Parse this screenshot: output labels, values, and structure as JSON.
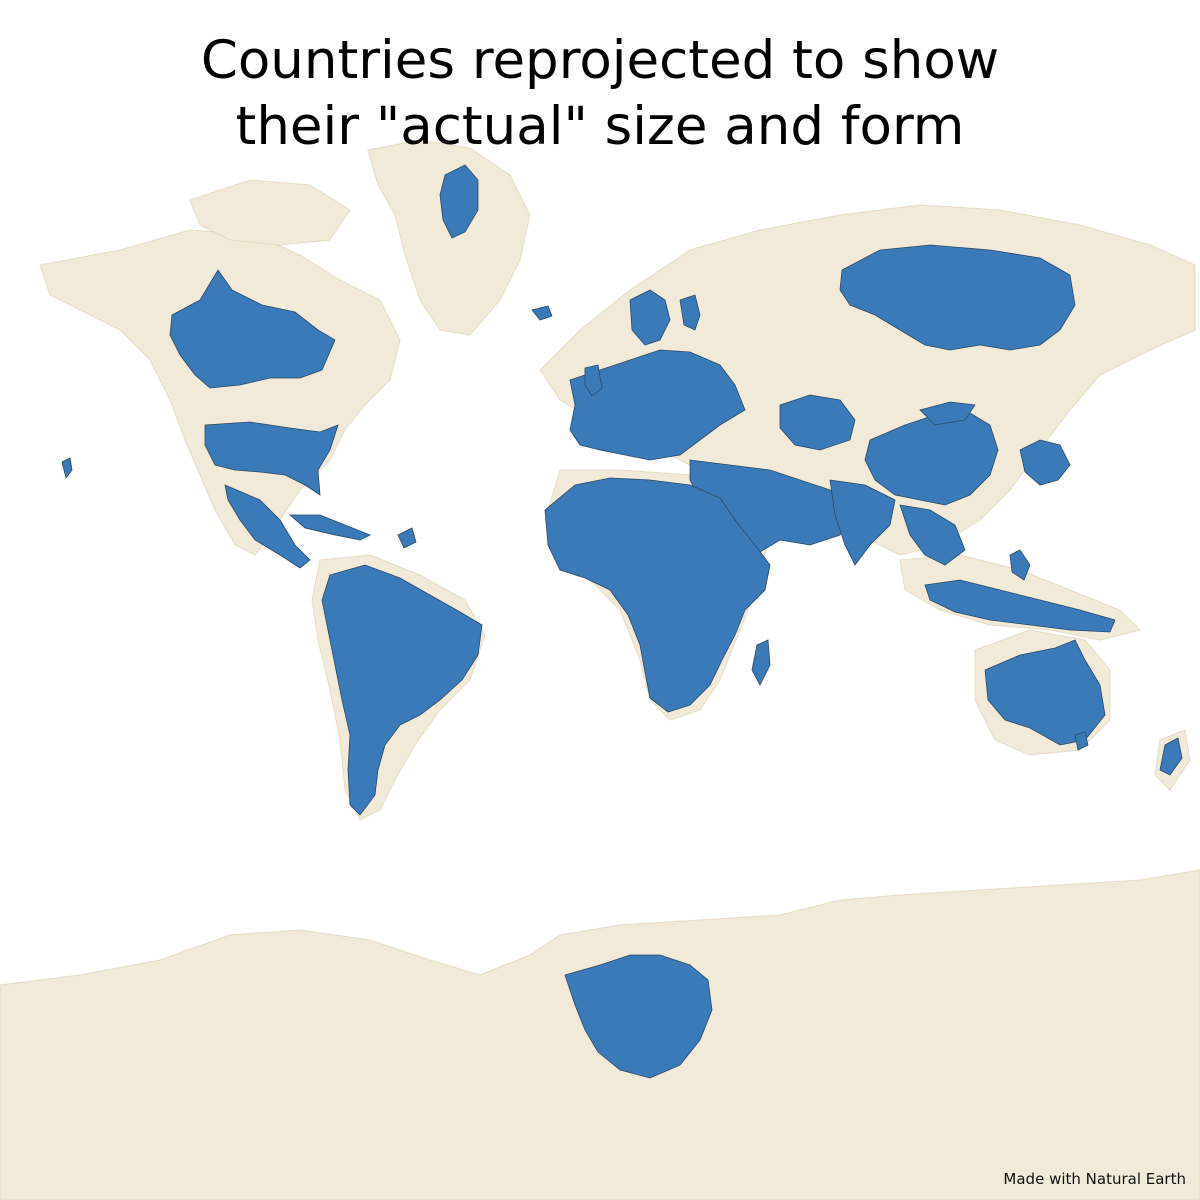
{
  "title": {
    "line1": "Countries reprojected to show",
    "line2": "their \"actual\" size and form"
  },
  "credit": "Made with Natural Earth",
  "colors": {
    "background": "#ffffff",
    "mercator_land": "#f2ead8",
    "actual_size_fill": "#3a7ab8",
    "border": "#2b4a66"
  },
  "legend": {
    "mercator_layer": "mercator-land",
    "actual_layer": "actual-size-countries"
  }
}
